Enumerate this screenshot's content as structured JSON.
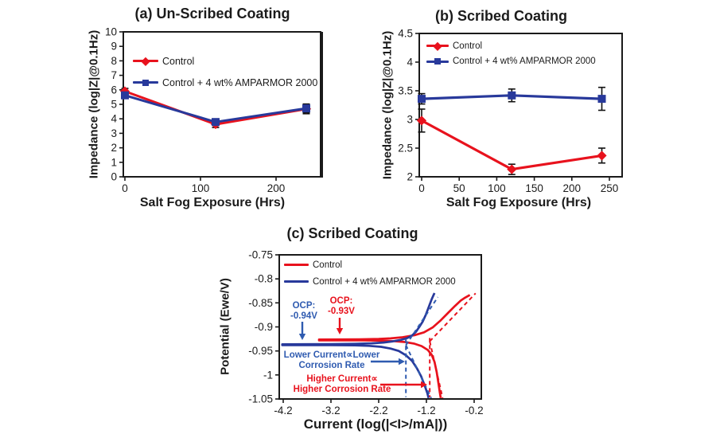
{
  "figure": {
    "background": "#ffffff"
  },
  "colors": {
    "control_red": "#e8121d",
    "amparmor_blue": "#28399b",
    "annotation_blue": "#2f5bb0",
    "annotation_red": "#e8121d",
    "error_bar": "#111111",
    "axis": "#1a1a1a",
    "text": "#1b1b1b"
  },
  "chart_data": [
    {
      "id": "a",
      "type": "line",
      "title": "(a) Un-Scribed Coating",
      "xlabel": "Salt Fog Exposure (Hrs)",
      "ylabel": "Impedance (log|Z|@0.1Hz)",
      "xlim": [
        -2.1,
        259
      ],
      "ylim": [
        0,
        10
      ],
      "xticks": [
        0,
        100,
        200
      ],
      "yticks": [
        0,
        1,
        2,
        3,
        4,
        5,
        6,
        7,
        8,
        9,
        10
      ],
      "x": [
        0,
        120,
        240
      ],
      "series": [
        {
          "name": "Control",
          "color": "control_red",
          "marker": "diamond",
          "values": [
            5.9,
            3.62,
            4.68
          ],
          "yerr": [
            0.2,
            0.22,
            0.33
          ]
        },
        {
          "name": "Control + 4 wt% AMPARMOR 2000",
          "color": "amparmor_blue",
          "marker": "square",
          "values": [
            5.62,
            3.78,
            4.72
          ],
          "yerr": [
            0.12,
            0.18,
            0.3
          ]
        }
      ]
    },
    {
      "id": "b",
      "type": "line",
      "title": "(b) Scribed Coating",
      "xlabel": "Salt Fog Exposure (Hrs)",
      "ylabel": "Impedance (log|Z|@0.1Hz)",
      "xlim": [
        -3.2,
        267
      ],
      "ylim": [
        2,
        4.5
      ],
      "xticks": [
        0,
        50,
        100,
        150,
        200,
        250
      ],
      "yticks": [
        2,
        2.5,
        3,
        3.5,
        4,
        4.5
      ],
      "ytick_labels": [
        "2",
        "2.5",
        "3",
        "3.5",
        "4",
        "4.5"
      ],
      "x": [
        0,
        120,
        240
      ],
      "series": [
        {
          "name": "Control",
          "color": "control_red",
          "marker": "diamond",
          "values": [
            2.98,
            2.13,
            2.37
          ],
          "yerr": [
            0.2,
            0.09,
            0.13
          ]
        },
        {
          "name": "Control + 4 wt% AMPARMOR 2000",
          "color": "amparmor_blue",
          "marker": "square",
          "values": [
            3.36,
            3.42,
            3.36
          ],
          "yerr": [
            0.09,
            0.11,
            0.2
          ]
        }
      ]
    },
    {
      "id": "c",
      "type": "line",
      "title": "(c) Scribed Coating",
      "xlabel": "Current (log(|<I>/mA|))",
      "ylabel": "Potential (Ewe/V)",
      "xlim": [
        -4.283,
        -0.05
      ],
      "ylim": [
        -1.05,
        -0.75
      ],
      "xticks": [
        -4.2,
        -3.2,
        -2.2,
        -1.2,
        -0.2
      ],
      "xtick_labels": [
        "-4.2",
        "-3.2",
        "-2.2",
        "-1.2",
        "-0.2"
      ],
      "yticks": [
        -0.75,
        -0.8,
        -0.85,
        -0.9,
        -0.95,
        -1,
        -1.05
      ],
      "ytick_labels": [
        "-0.75",
        "-0.8",
        "-0.85",
        "-0.9",
        "-0.95",
        "-1",
        "-1.05"
      ],
      "series": [
        {
          "name": "Control",
          "color": "control_red",
          "marker": "none",
          "points": [
            [
              -0.9,
              -1.048
            ],
            [
              -0.92,
              -1.036
            ],
            [
              -0.95,
              -1.016
            ],
            [
              -0.985,
              -0.994
            ],
            [
              -1.03,
              -0.973
            ],
            [
              -1.09,
              -0.958
            ],
            [
              -1.17,
              -0.948
            ],
            [
              -1.3,
              -0.94
            ],
            [
              -1.45,
              -0.935
            ],
            [
              -1.65,
              -0.9315
            ],
            [
              -1.9,
              -0.9295
            ],
            [
              -2.2,
              -0.9285
            ],
            [
              -2.6,
              -0.928
            ],
            [
              -3.45,
              -0.928
            ],
            [
              -3.45,
              -0.9262
            ],
            [
              -2.6,
              -0.9258
            ],
            [
              -2.2,
              -0.925
            ],
            [
              -1.95,
              -0.9238
            ],
            [
              -1.7,
              -0.9215
            ],
            [
              -1.45,
              -0.9172
            ],
            [
              -1.25,
              -0.9112
            ],
            [
              -1.07,
              -0.9012
            ],
            [
              -0.9,
              -0.8862
            ],
            [
              -0.74,
              -0.8702
            ],
            [
              -0.6,
              -0.8562
            ],
            [
              -0.48,
              -0.8452
            ],
            [
              -0.39,
              -0.8392
            ],
            [
              -0.32,
              -0.8352
            ],
            [
              -0.29,
              -0.8335
            ]
          ]
        },
        {
          "name": "Control + 4 wt% AMPARMOR 2000",
          "color": "amparmor_blue",
          "marker": "none",
          "points": [
            [
              -1.155,
              -1.048
            ],
            [
              -1.18,
              -1.038
            ],
            [
              -1.24,
              -1.021
            ],
            [
              -1.31,
              -1.003
            ],
            [
              -1.4,
              -0.986
            ],
            [
              -1.5,
              -0.971
            ],
            [
              -1.63,
              -0.959
            ],
            [
              -1.78,
              -0.95
            ],
            [
              -1.95,
              -0.945
            ],
            [
              -2.15,
              -0.9415
            ],
            [
              -2.4,
              -0.9395
            ],
            [
              -2.7,
              -0.9385
            ],
            [
              -3.2,
              -0.938
            ],
            [
              -4.22,
              -0.938
            ],
            [
              -4.22,
              -0.9362
            ],
            [
              -3.2,
              -0.9358
            ],
            [
              -2.7,
              -0.9352
            ],
            [
              -2.35,
              -0.9342
            ],
            [
              -2.1,
              -0.9325
            ],
            [
              -1.9,
              -0.93
            ],
            [
              -1.73,
              -0.9268
            ],
            [
              -1.6,
              -0.9232
            ],
            [
              -1.5,
              -0.9178
            ],
            [
              -1.42,
              -0.9102
            ],
            [
              -1.35,
              -0.9002
            ],
            [
              -1.28,
              -0.8892
            ],
            [
              -1.21,
              -0.8742
            ],
            [
              -1.15,
              -0.8582
            ],
            [
              -1.09,
              -0.8425
            ],
            [
              -1.05,
              -0.8335
            ],
            [
              -1.03,
              -0.8295
            ]
          ]
        }
      ],
      "guides": [
        {
          "name": "amparmor-icorr-line",
          "color": "annotation_blue",
          "dash": true,
          "points": [
            [
              -1.63,
              -0.925
            ],
            [
              -1.63,
              -1.046
            ]
          ]
        },
        {
          "name": "amparmor-anodic-tafel",
          "color": "annotation_blue",
          "dash": true,
          "points": [
            [
              -1.63,
              -0.938
            ],
            [
              -0.96,
              -0.838
            ]
          ]
        },
        {
          "name": "amparmor-cathodic-tafel",
          "color": "annotation_blue",
          "dash": true,
          "points": [
            [
              -1.63,
              -0.938
            ],
            [
              -1.1,
              -1.048
            ]
          ]
        },
        {
          "name": "control-icorr-line",
          "color": "annotation_red",
          "dash": true,
          "points": [
            [
              -1.13,
              -0.923
            ],
            [
              -1.13,
              -1.046
            ]
          ]
        },
        {
          "name": "control-anodic-tafel",
          "color": "annotation_red",
          "dash": true,
          "points": [
            [
              -1.13,
              -0.93
            ],
            [
              -0.17,
              -0.83
            ]
          ]
        },
        {
          "name": "control-cathodic-tafel",
          "color": "annotation_red",
          "dash": true,
          "points": [
            [
              -1.13,
              -0.93
            ],
            [
              -0.86,
              -1.048
            ]
          ]
        }
      ],
      "annotations": {
        "ocp_blue": [
          "OCP:",
          "-0.94V"
        ],
        "ocp_red": [
          "OCP:",
          "-0.93V"
        ],
        "lower": [
          "Lower Current∝Lower",
          "Corrosion Rate"
        ],
        "higher": [
          "Higher Current∝",
          "Higher Corrosion Rate"
        ]
      }
    }
  ]
}
